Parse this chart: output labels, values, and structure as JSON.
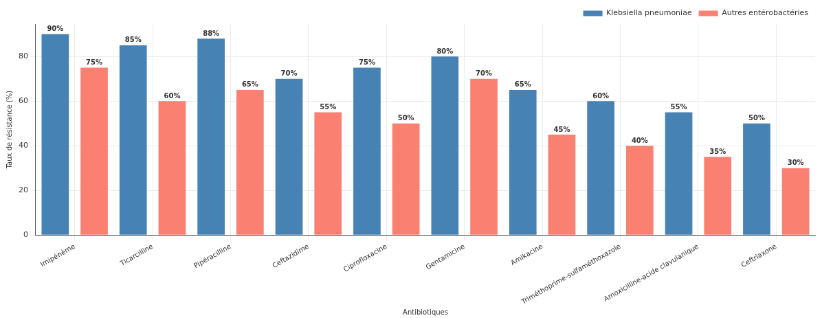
{
  "chart_data": {
    "type": "bar",
    "xlabel": "Antibiotiques",
    "ylabel": "Taux de résistance (%)",
    "categories": [
      "Imipénème",
      "Ticarcilline",
      "Pipéracilline",
      "Ceftazidime",
      "Ciprofloxacine",
      "Gentamicine",
      "Amikacine",
      "Triméthoprime-sulfaméthoxazole",
      "Amoxicilline-acide clavulanique",
      "Ceftriaxone"
    ],
    "series": [
      {
        "name": "Klebsiella pneumoniae",
        "color": "#4682b4",
        "values": [
          90,
          85,
          88,
          70,
          75,
          80,
          65,
          60,
          55,
          50
        ],
        "value_labels": [
          "90%",
          "85%",
          "88%",
          "70%",
          "75%",
          "80%",
          "65%",
          "60%",
          "55%",
          "50%"
        ]
      },
      {
        "name": "Autres entérobactéries",
        "color": "#fa8072",
        "values": [
          75,
          60,
          65,
          55,
          50,
          70,
          45,
          40,
          35,
          30
        ],
        "value_labels": [
          "75%",
          "60%",
          "65%",
          "55%",
          "50%",
          "70%",
          "45%",
          "40%",
          "35%",
          "30%"
        ]
      }
    ],
    "ylim": [
      0,
      94.5
    ],
    "yticks": [
      0,
      20,
      40,
      60,
      80
    ],
    "grid": true,
    "legend": "top right"
  }
}
